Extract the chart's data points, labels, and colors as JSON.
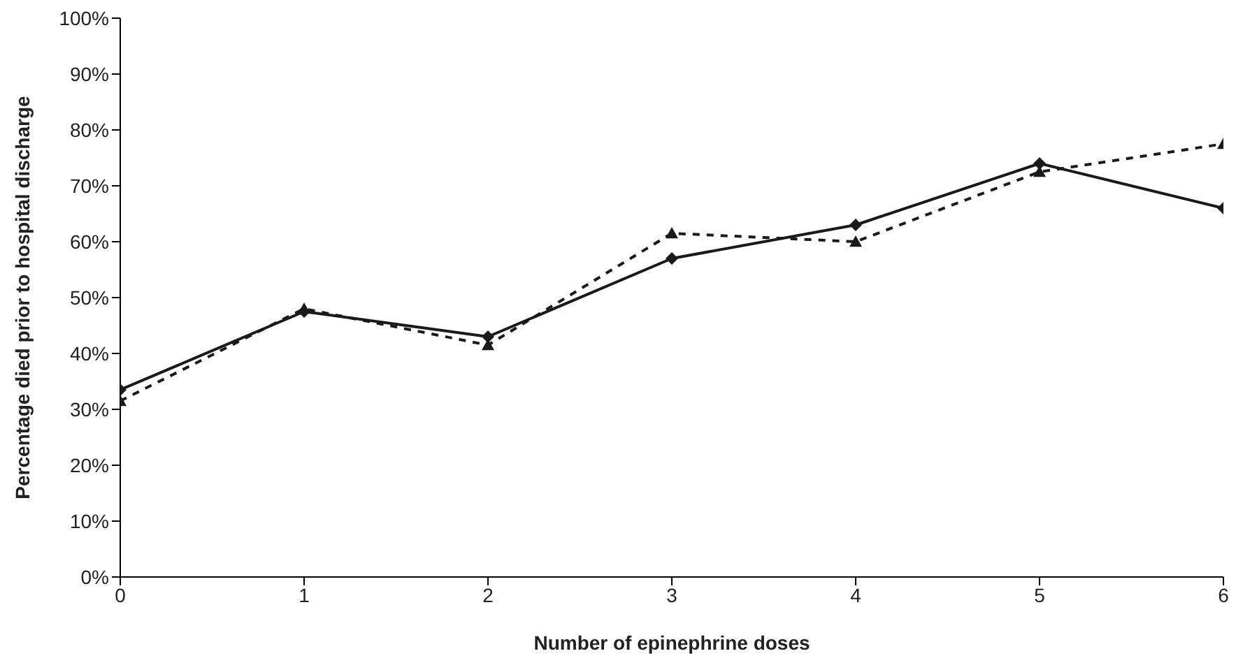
{
  "chart_data": {
    "type": "line",
    "xlabel": "Number of epinephrine doses",
    "ylabel": "Percentage died prior to hospital discharge",
    "x": [
      0,
      1,
      2,
      3,
      4,
      5,
      6
    ],
    "series": [
      {
        "color": "#1a1a1a",
        "marker": "diamond",
        "line_style": "solid",
        "values": [
          33.5,
          47.5,
          43,
          57,
          63,
          74,
          66
        ]
      },
      {
        "color": "#1a1a1a",
        "marker": "triangle",
        "line_style": "dashed",
        "values": [
          31.5,
          48,
          41.5,
          61.5,
          60,
          72.5,
          77.5
        ]
      }
    ],
    "xlim": [
      0,
      6
    ],
    "xticks": [
      0,
      1,
      2,
      3,
      4,
      5,
      6
    ],
    "ylim": [
      0,
      100
    ],
    "yticks": [
      {
        "value": 0,
        "label": "0%"
      },
      {
        "value": 10,
        "label": "10%"
      },
      {
        "value": 20,
        "label": "20%"
      },
      {
        "value": 30,
        "label": "30%"
      },
      {
        "value": 40,
        "label": "40%"
      },
      {
        "value": 50,
        "label": "50%"
      },
      {
        "value": 60,
        "label": "60%"
      },
      {
        "value": 70,
        "label": "70%"
      },
      {
        "value": 80,
        "label": "80%"
      },
      {
        "value": 90,
        "label": "90%"
      },
      {
        "value": 100,
        "label": "100%"
      }
    ],
    "grid": false,
    "legend": false
  }
}
